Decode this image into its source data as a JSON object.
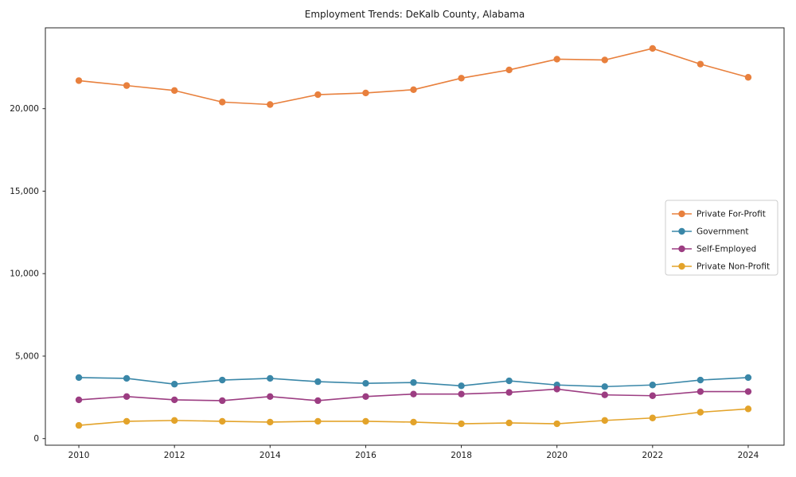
{
  "chart_data": {
    "type": "line",
    "title": "Employment Trends: DeKalb County, Alabama",
    "xlabel": "",
    "ylabel": "",
    "grid": false,
    "legend_position": "center right",
    "xlim": [
      2009.3,
      2024.75
    ],
    "ylim": [
      -400,
      24900
    ],
    "x": [
      2010,
      2011,
      2012,
      2013,
      2014,
      2015,
      2016,
      2017,
      2018,
      2019,
      2020,
      2021,
      2022,
      2023,
      2024
    ],
    "x_ticks": [
      2010,
      2012,
      2014,
      2016,
      2018,
      2020,
      2022,
      2024
    ],
    "x_tick_labels": [
      "2010",
      "2012",
      "2014",
      "2016",
      "2018",
      "2020",
      "2022",
      "2024"
    ],
    "y_ticks": [
      0,
      5000,
      10000,
      15000,
      20000
    ],
    "y_tick_labels": [
      "0",
      "5,000",
      "10,000",
      "15,000",
      "20,000"
    ],
    "series": [
      {
        "name": "Private For-Profit",
        "color": "#e8803d",
        "values": [
          21700,
          21400,
          21100,
          20400,
          20250,
          20850,
          20950,
          21150,
          21850,
          22350,
          23000,
          22950,
          23650,
          22700,
          21900
        ]
      },
      {
        "name": "Government",
        "color": "#3a87a8",
        "values": [
          3700,
          3650,
          3300,
          3550,
          3650,
          3450,
          3350,
          3400,
          3200,
          3500,
          3250,
          3150,
          3250,
          3550,
          3700
        ]
      },
      {
        "name": "Self-Employed",
        "color": "#9c3d82",
        "values": [
          2350,
          2550,
          2350,
          2300,
          2550,
          2300,
          2550,
          2700,
          2700,
          2800,
          3000,
          2650,
          2600,
          2850,
          2850
        ]
      },
      {
        "name": "Private Non-Profit",
        "color": "#e3a32a",
        "values": [
          800,
          1050,
          1100,
          1050,
          1000,
          1050,
          1050,
          1000,
          900,
          950,
          900,
          1100,
          1250,
          1600,
          1800
        ]
      }
    ]
  }
}
